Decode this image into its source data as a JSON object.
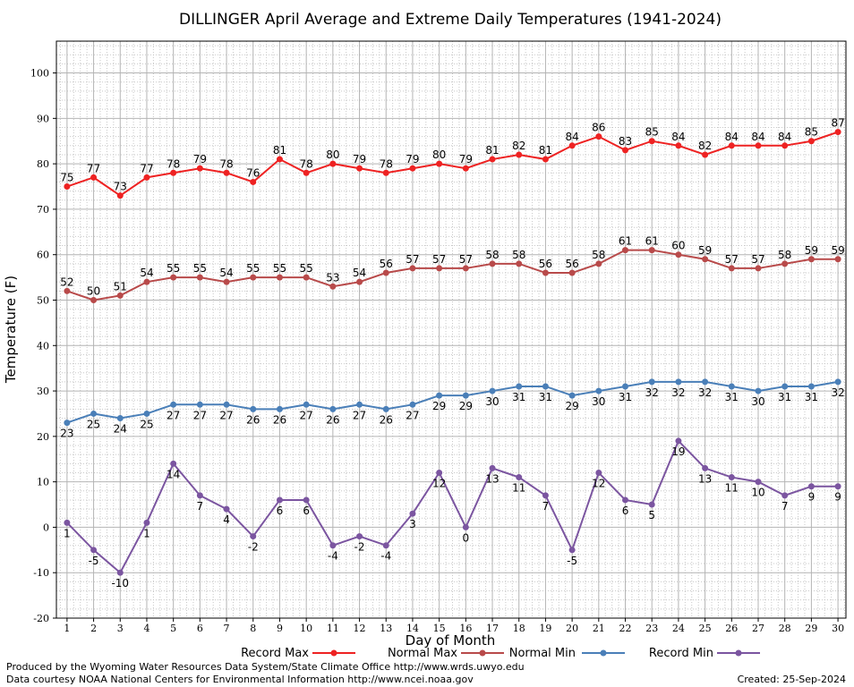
{
  "chart_data": {
    "type": "line",
    "title": "DILLINGER April Average and Extreme Daily Temperatures (1941-2024)",
    "xlabel": "Day of Month",
    "ylabel": "Temperature (F)",
    "ylim": [
      -20,
      107
    ],
    "xlim": [
      0.6,
      30.3
    ],
    "grid": true,
    "legend_position": "bottom",
    "x": [
      1,
      2,
      3,
      4,
      5,
      6,
      7,
      8,
      9,
      10,
      11,
      12,
      13,
      14,
      15,
      16,
      17,
      18,
      19,
      20,
      21,
      22,
      23,
      24,
      25,
      26,
      27,
      28,
      29,
      30
    ],
    "y_ticks": [
      -20,
      -10,
      0,
      10,
      20,
      30,
      40,
      50,
      60,
      70,
      80,
      90,
      100
    ],
    "series": [
      {
        "name": "Record Max",
        "color": "#ee2222",
        "label_position": "above",
        "values": [
          75,
          77,
          73,
          77,
          78,
          79,
          78,
          76,
          81,
          78,
          80,
          79,
          78,
          79,
          80,
          79,
          81,
          82,
          81,
          84,
          86,
          83,
          85,
          84,
          82,
          84,
          84,
          84,
          85,
          87
        ]
      },
      {
        "name": "Normal Max",
        "color": "#b84a4a",
        "label_position": "above",
        "values": [
          52,
          50,
          51,
          54,
          55,
          55,
          54,
          55,
          55,
          55,
          53,
          54,
          56,
          57,
          57,
          57,
          58,
          58,
          56,
          56,
          58,
          61,
          61,
          60,
          59,
          57,
          57,
          58,
          59,
          59
        ]
      },
      {
        "name": "Normal Min",
        "color": "#4a7fb8",
        "label_position": "below",
        "values": [
          23,
          25,
          24,
          25,
          27,
          27,
          27,
          26,
          26,
          27,
          26,
          27,
          26,
          27,
          29,
          29,
          30,
          31,
          31,
          29,
          30,
          31,
          32,
          32,
          32,
          31,
          30,
          31,
          31,
          32
        ]
      },
      {
        "name": "Record Min",
        "color": "#7b55a0",
        "label_position": "below",
        "values": [
          1,
          -5,
          -10,
          1,
          14,
          7,
          4,
          -2,
          6,
          6,
          -4,
          -2,
          -4,
          3,
          12,
          0,
          13,
          11,
          7,
          -5,
          12,
          6,
          5,
          19,
          13,
          11,
          10,
          7,
          9,
          9
        ]
      }
    ]
  },
  "footer": {
    "produced_by": "Produced by the Wyoming Water Resources Data System/State Climate Office http://www.wrds.uwyo.edu",
    "courtesy": "Data courtesy NOAA National Centers for Environmental Information http://www.ncei.noaa.gov",
    "created": "Created:  25-Sep-2024"
  }
}
